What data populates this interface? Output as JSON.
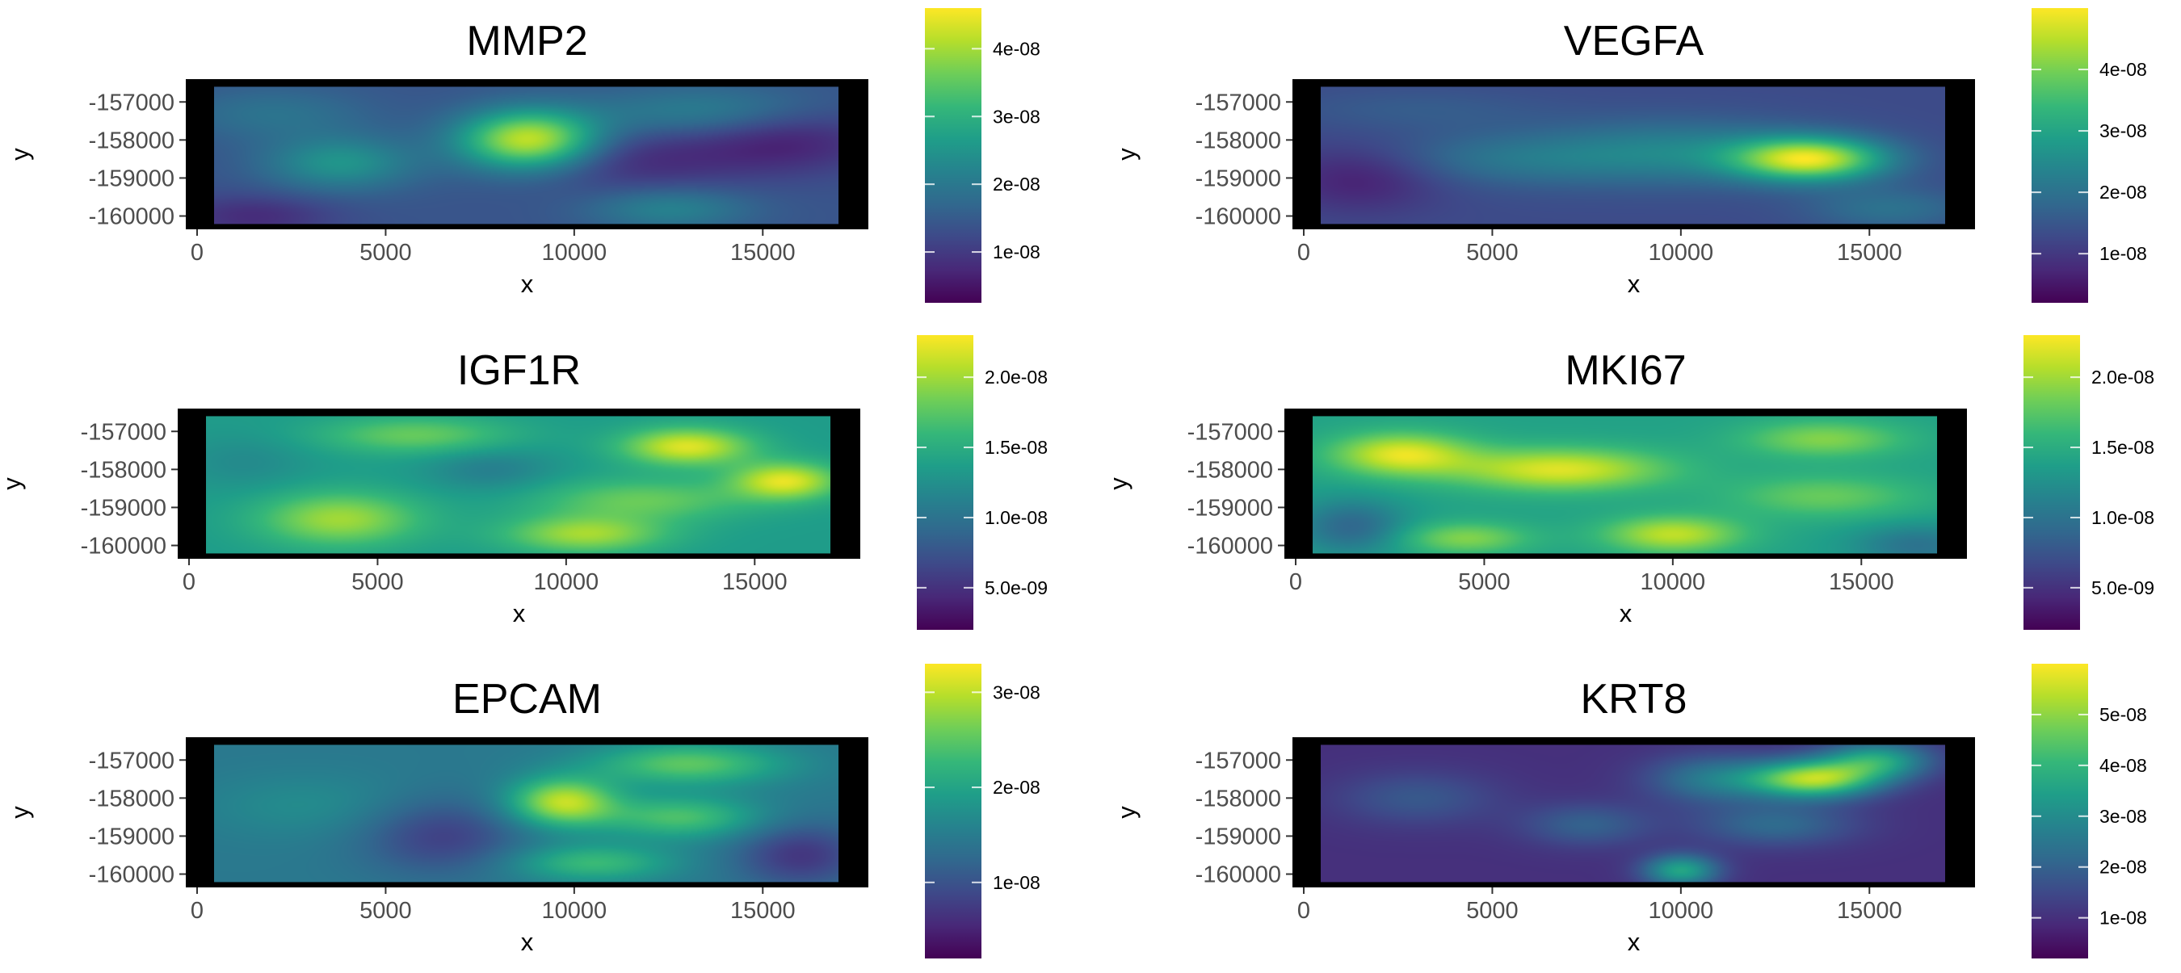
{
  "colors": {
    "background": "#ffffff",
    "panel_background": "#000000",
    "text": "#000000",
    "tick_text": "#4d4d4d",
    "viridis": [
      "#440154",
      "#482878",
      "#3e4989",
      "#31688e",
      "#26828e",
      "#1f9e89",
      "#35b779",
      "#6ece58",
      "#b5de2b",
      "#fde725"
    ]
  },
  "chart_data": [
    {
      "type": "heatmap",
      "title": "MMP2",
      "xlabel": "x",
      "ylabel": "y",
      "x_ticks": [
        "0",
        "5000",
        "10000",
        "15000"
      ],
      "y_ticks": [
        "-157000",
        "-158000",
        "-159000",
        "-160000"
      ],
      "xlim": [
        -300,
        17800
      ],
      "ylim": [
        -160350,
        -156400
      ],
      "grid_extent": {
        "x": [
          450,
          17000
        ],
        "y": [
          -160200,
          -156600
        ]
      },
      "legend_ticks": [
        "1e-08",
        "2e-08",
        "3e-08",
        "4e-08"
      ],
      "legend_tick_values": [
        1e-08,
        2e-08,
        3e-08,
        4e-08
      ],
      "value_range": [
        2.5e-09,
        4.6e-08
      ],
      "base_value": 1.4e-08,
      "hotspots": [
        {
          "x": 8800,
          "y": -158000,
          "value": 4.3e-08,
          "sx": 1300,
          "sy": 550
        },
        {
          "x": 3800,
          "y": -158600,
          "value": 2.5e-08,
          "sx": 1400,
          "sy": 500
        },
        {
          "x": 13500,
          "y": -157300,
          "value": 2.2e-08,
          "sx": 2200,
          "sy": 500
        },
        {
          "x": 2000,
          "y": -157300,
          "value": 1.9e-08,
          "sx": 1800,
          "sy": 500
        },
        {
          "x": 12500,
          "y": -159800,
          "value": 2.2e-08,
          "sx": 1500,
          "sy": 400
        },
        {
          "x": 15500,
          "y": -158000,
          "value": 6e-09,
          "sx": 1800,
          "sy": 600
        },
        {
          "x": 11500,
          "y": -158500,
          "value": 8e-09,
          "sx": 2000,
          "sy": 600
        },
        {
          "x": 1500,
          "y": -160000,
          "value": 8e-09,
          "sx": 1500,
          "sy": 400
        }
      ]
    },
    {
      "type": "heatmap",
      "title": "VEGFA",
      "xlabel": "x",
      "ylabel": "y",
      "x_ticks": [
        "0",
        "5000",
        "10000",
        "15000"
      ],
      "y_ticks": [
        "-157000",
        "-158000",
        "-159000",
        "-160000"
      ],
      "xlim": [
        -300,
        17800
      ],
      "ylim": [
        -160350,
        -156400
      ],
      "grid_extent": {
        "x": [
          450,
          17000
        ],
        "y": [
          -160200,
          -156600
        ]
      },
      "legend_ticks": [
        "1e-08",
        "2e-08",
        "3e-08",
        "4e-08"
      ],
      "legend_tick_values": [
        1e-08,
        2e-08,
        3e-08,
        4e-08
      ],
      "value_range": [
        2e-09,
        5e-08
      ],
      "base_value": 1.3e-08,
      "hotspots": [
        {
          "x": 13400,
          "y": -158500,
          "value": 4.6e-08,
          "sx": 1400,
          "sy": 400
        },
        {
          "x": 10000,
          "y": -158300,
          "value": 2.3e-08,
          "sx": 2500,
          "sy": 600
        },
        {
          "x": 5500,
          "y": -158500,
          "value": 2e-08,
          "sx": 2500,
          "sy": 500
        },
        {
          "x": 15500,
          "y": -159800,
          "value": 2e-08,
          "sx": 1500,
          "sy": 400
        },
        {
          "x": 1500,
          "y": -159000,
          "value": 6e-09,
          "sx": 1500,
          "sy": 600
        },
        {
          "x": 3000,
          "y": -157200,
          "value": 1.6e-08,
          "sx": 2500,
          "sy": 400
        }
      ]
    },
    {
      "type": "heatmap",
      "title": "IGF1R",
      "xlabel": "x",
      "ylabel": "y",
      "x_ticks": [
        "0",
        "5000",
        "10000",
        "15000"
      ],
      "y_ticks": [
        "-157000",
        "-158000",
        "-159000",
        "-160000"
      ],
      "xlim": [
        -300,
        17800
      ],
      "ylim": [
        -160350,
        -156400
      ],
      "grid_extent": {
        "x": [
          450,
          17000
        ],
        "y": [
          -160200,
          -156600
        ]
      },
      "legend_ticks": [
        "5.0e-09",
        "1.0e-08",
        "1.5e-08",
        "2.0e-08"
      ],
      "legend_tick_values": [
        5e-09,
        1e-08,
        1.5e-08,
        2e-08
      ],
      "value_range": [
        2e-09,
        2.3e-08
      ],
      "base_value": 1.35e-08,
      "hotspots": [
        {
          "x": 13200,
          "y": -157400,
          "value": 2.2e-08,
          "sx": 1200,
          "sy": 350
        },
        {
          "x": 15800,
          "y": -158300,
          "value": 2.2e-08,
          "sx": 1000,
          "sy": 350
        },
        {
          "x": 4000,
          "y": -159300,
          "value": 2e-08,
          "sx": 1500,
          "sy": 500
        },
        {
          "x": 10500,
          "y": -159700,
          "value": 2e-08,
          "sx": 1500,
          "sy": 350
        },
        {
          "x": 8000,
          "y": -158000,
          "value": 1.1e-08,
          "sx": 1200,
          "sy": 400
        },
        {
          "x": 1500,
          "y": -157800,
          "value": 1.2e-08,
          "sx": 1200,
          "sy": 500
        },
        {
          "x": 12000,
          "y": -158800,
          "value": 1.8e-08,
          "sx": 2000,
          "sy": 400
        },
        {
          "x": 6000,
          "y": -157100,
          "value": 1.8e-08,
          "sx": 1800,
          "sy": 350
        }
      ]
    },
    {
      "type": "heatmap",
      "title": "MKI67",
      "xlabel": "x",
      "ylabel": "y",
      "x_ticks": [
        "0",
        "5000",
        "10000",
        "15000"
      ],
      "y_ticks": [
        "-157000",
        "-158000",
        "-159000",
        "-160000"
      ],
      "xlim": [
        -300,
        17800
      ],
      "ylim": [
        -160350,
        -156400
      ],
      "grid_extent": {
        "x": [
          450,
          17000
        ],
        "y": [
          -160200,
          -156600
        ]
      },
      "legend_ticks": [
        "5.0e-09",
        "1.0e-08",
        "1.5e-08",
        "2.0e-08"
      ],
      "legend_tick_values": [
        5e-09,
        1e-08,
        1.5e-08,
        2e-08
      ],
      "value_range": [
        2e-09,
        2.3e-08
      ],
      "base_value": 1.4e-08,
      "hotspots": [
        {
          "x": 2800,
          "y": -157600,
          "value": 2.2e-08,
          "sx": 1300,
          "sy": 400
        },
        {
          "x": 7000,
          "y": -158000,
          "value": 2.2e-08,
          "sx": 2000,
          "sy": 400
        },
        {
          "x": 10000,
          "y": -159700,
          "value": 2.1e-08,
          "sx": 1300,
          "sy": 350
        },
        {
          "x": 4500,
          "y": -159800,
          "value": 1.9e-08,
          "sx": 1200,
          "sy": 300
        },
        {
          "x": 14000,
          "y": -157200,
          "value": 1.9e-08,
          "sx": 1500,
          "sy": 350
        },
        {
          "x": 14000,
          "y": -158700,
          "value": 1.8e-08,
          "sx": 1800,
          "sy": 400
        },
        {
          "x": 1500,
          "y": -159500,
          "value": 9e-09,
          "sx": 1000,
          "sy": 500
        },
        {
          "x": 16500,
          "y": -160000,
          "value": 1e-08,
          "sx": 1200,
          "sy": 400
        }
      ]
    },
    {
      "type": "heatmap",
      "title": "EPCAM",
      "xlabel": "x",
      "ylabel": "y",
      "x_ticks": [
        "0",
        "5000",
        "10000",
        "15000"
      ],
      "y_ticks": [
        "-157000",
        "-158000",
        "-159000",
        "-160000"
      ],
      "xlim": [
        -300,
        17800
      ],
      "ylim": [
        -160350,
        -156400
      ],
      "grid_extent": {
        "x": [
          450,
          17000
        ],
        "y": [
          -160200,
          -156600
        ]
      },
      "legend_ticks": [
        "1e-08",
        "2e-08",
        "3e-08"
      ],
      "legend_tick_values": [
        1e-08,
        2e-08,
        3e-08
      ],
      "value_range": [
        2e-09,
        3.3e-08
      ],
      "base_value": 1.45e-08,
      "hotspots": [
        {
          "x": 9700,
          "y": -158100,
          "value": 3e-08,
          "sx": 1000,
          "sy": 450
        },
        {
          "x": 13000,
          "y": -157100,
          "value": 2.5e-08,
          "sx": 1800,
          "sy": 400
        },
        {
          "x": 12800,
          "y": -158500,
          "value": 2.4e-08,
          "sx": 1500,
          "sy": 400
        },
        {
          "x": 10500,
          "y": -159700,
          "value": 2.3e-08,
          "sx": 1500,
          "sy": 350
        },
        {
          "x": 3000,
          "y": -158200,
          "value": 1.7e-08,
          "sx": 2000,
          "sy": 600
        },
        {
          "x": 6500,
          "y": -159000,
          "value": 8e-09,
          "sx": 1500,
          "sy": 700
        },
        {
          "x": 16000,
          "y": -159500,
          "value": 7e-09,
          "sx": 1200,
          "sy": 600
        }
      ]
    },
    {
      "type": "heatmap",
      "title": "KRT8",
      "xlabel": "x",
      "ylabel": "y",
      "x_ticks": [
        "0",
        "5000",
        "10000",
        "15000"
      ],
      "y_ticks": [
        "-157000",
        "-158000",
        "-159000",
        "-160000"
      ],
      "xlim": [
        -300,
        17800
      ],
      "ylim": [
        -160350,
        -156400
      ],
      "grid_extent": {
        "x": [
          450,
          17000
        ],
        "y": [
          -160200,
          -156600
        ]
      },
      "legend_ticks": [
        "1e-08",
        "2e-08",
        "3e-08",
        "4e-08",
        "5e-08"
      ],
      "legend_tick_values": [
        1e-08,
        2e-08,
        3e-08,
        4e-08,
        5e-08
      ],
      "value_range": [
        2e-09,
        6e-08
      ],
      "base_value": 1e-08,
      "hotspots": [
        {
          "x": 13500,
          "y": -157500,
          "value": 5.2e-08,
          "sx": 1200,
          "sy": 350
        },
        {
          "x": 15200,
          "y": -157000,
          "value": 3.5e-08,
          "sx": 1000,
          "sy": 350
        },
        {
          "x": 10000,
          "y": -159900,
          "value": 3.6e-08,
          "sx": 700,
          "sy": 300
        },
        {
          "x": 10800,
          "y": -157500,
          "value": 2.5e-08,
          "sx": 1200,
          "sy": 450
        },
        {
          "x": 12500,
          "y": -158700,
          "value": 2.2e-08,
          "sx": 1500,
          "sy": 400
        },
        {
          "x": 7500,
          "y": -158700,
          "value": 2e-08,
          "sx": 1200,
          "sy": 400
        },
        {
          "x": 3000,
          "y": -158000,
          "value": 1.8e-08,
          "sx": 1500,
          "sy": 500
        }
      ]
    }
  ]
}
